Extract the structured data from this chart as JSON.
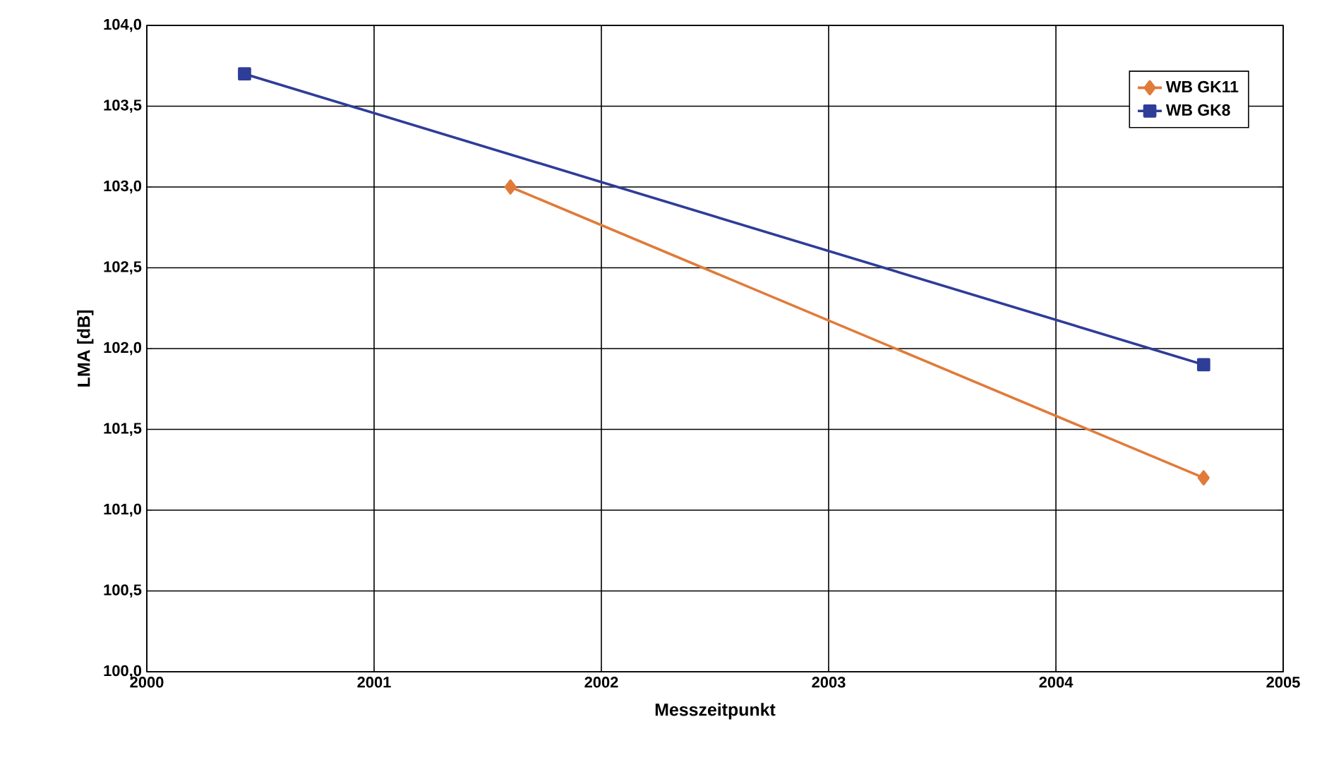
{
  "chart_data": {
    "type": "line",
    "xlabel": "Messzeitpunkt",
    "ylabel": "LMA [dB]",
    "xlim": [
      2000,
      2005
    ],
    "xticks": [
      2000,
      2001,
      2002,
      2003,
      2004,
      2005
    ],
    "ylim": [
      100,
      104
    ],
    "yticks": [
      {
        "value": 100,
        "label": "100,0"
      },
      {
        "value": 100.5,
        "label": "100,5"
      },
      {
        "value": 101,
        "label": "101,0"
      },
      {
        "value": 101.5,
        "label": "101,5"
      },
      {
        "value": 102,
        "label": "102,0"
      },
      {
        "value": 102.5,
        "label": "102,5"
      },
      {
        "value": 103,
        "label": "103,0"
      },
      {
        "value": 103.5,
        "label": "103,5"
      },
      {
        "value": 104,
        "label": "104,0"
      }
    ],
    "grid": true,
    "legend": "top right",
    "line_style": "solid",
    "series": [
      {
        "name": "WB GK11",
        "color": "#e07b39",
        "marker": "diamond",
        "x": [
          2001.6,
          2004.65
        ],
        "values": [
          103.0,
          101.2
        ]
      },
      {
        "name": "WB GK8",
        "color": "#2e3d98",
        "marker": "square",
        "x": [
          2000.43,
          2004.65
        ],
        "values": [
          103.7,
          101.9
        ]
      }
    ]
  }
}
